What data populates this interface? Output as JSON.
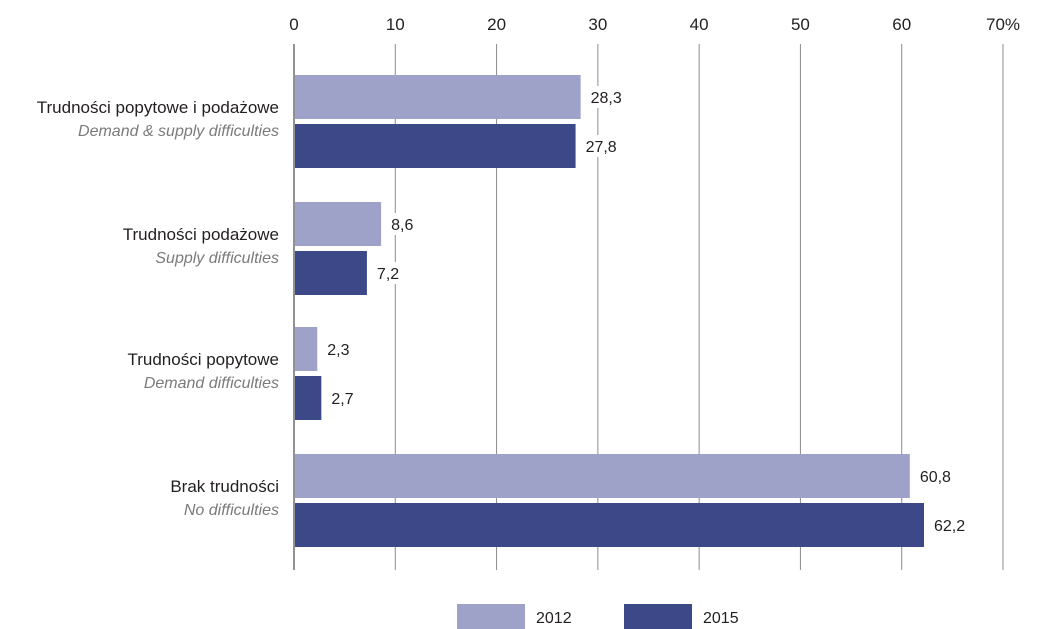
{
  "chart_data": {
    "type": "bar",
    "orientation": "horizontal",
    "categories": [
      {
        "pl": "Trudności popytowe i podażowe",
        "en": "Demand & supply difficulties"
      },
      {
        "pl": "Trudności podażowe",
        "en": "Supply difficulties"
      },
      {
        "pl": "Trudności popytowe",
        "en": "Demand difficulties"
      },
      {
        "pl": "Brak trudności",
        "en": "No difficulties"
      }
    ],
    "series": [
      {
        "name": "2012",
        "color": "#9fa2c8",
        "values": [
          28.3,
          8.6,
          2.3,
          60.8
        ],
        "labels": [
          "28,3",
          "8,6",
          "2,3",
          "60,8"
        ]
      },
      {
        "name": "2015",
        "color": "#3d4889",
        "values": [
          27.8,
          7.2,
          2.7,
          62.2
        ],
        "labels": [
          "27,8",
          "7,2",
          "2,7",
          "62,2"
        ]
      }
    ],
    "xlim": [
      0,
      70
    ],
    "ticks": [
      0,
      10,
      20,
      30,
      40,
      50,
      60,
      70
    ],
    "tick_labels": [
      "0",
      "10",
      "20",
      "30",
      "40",
      "50",
      "60",
      "70%"
    ],
    "axis_position": "top",
    "grid": true,
    "legend_position": "bottom-center"
  }
}
